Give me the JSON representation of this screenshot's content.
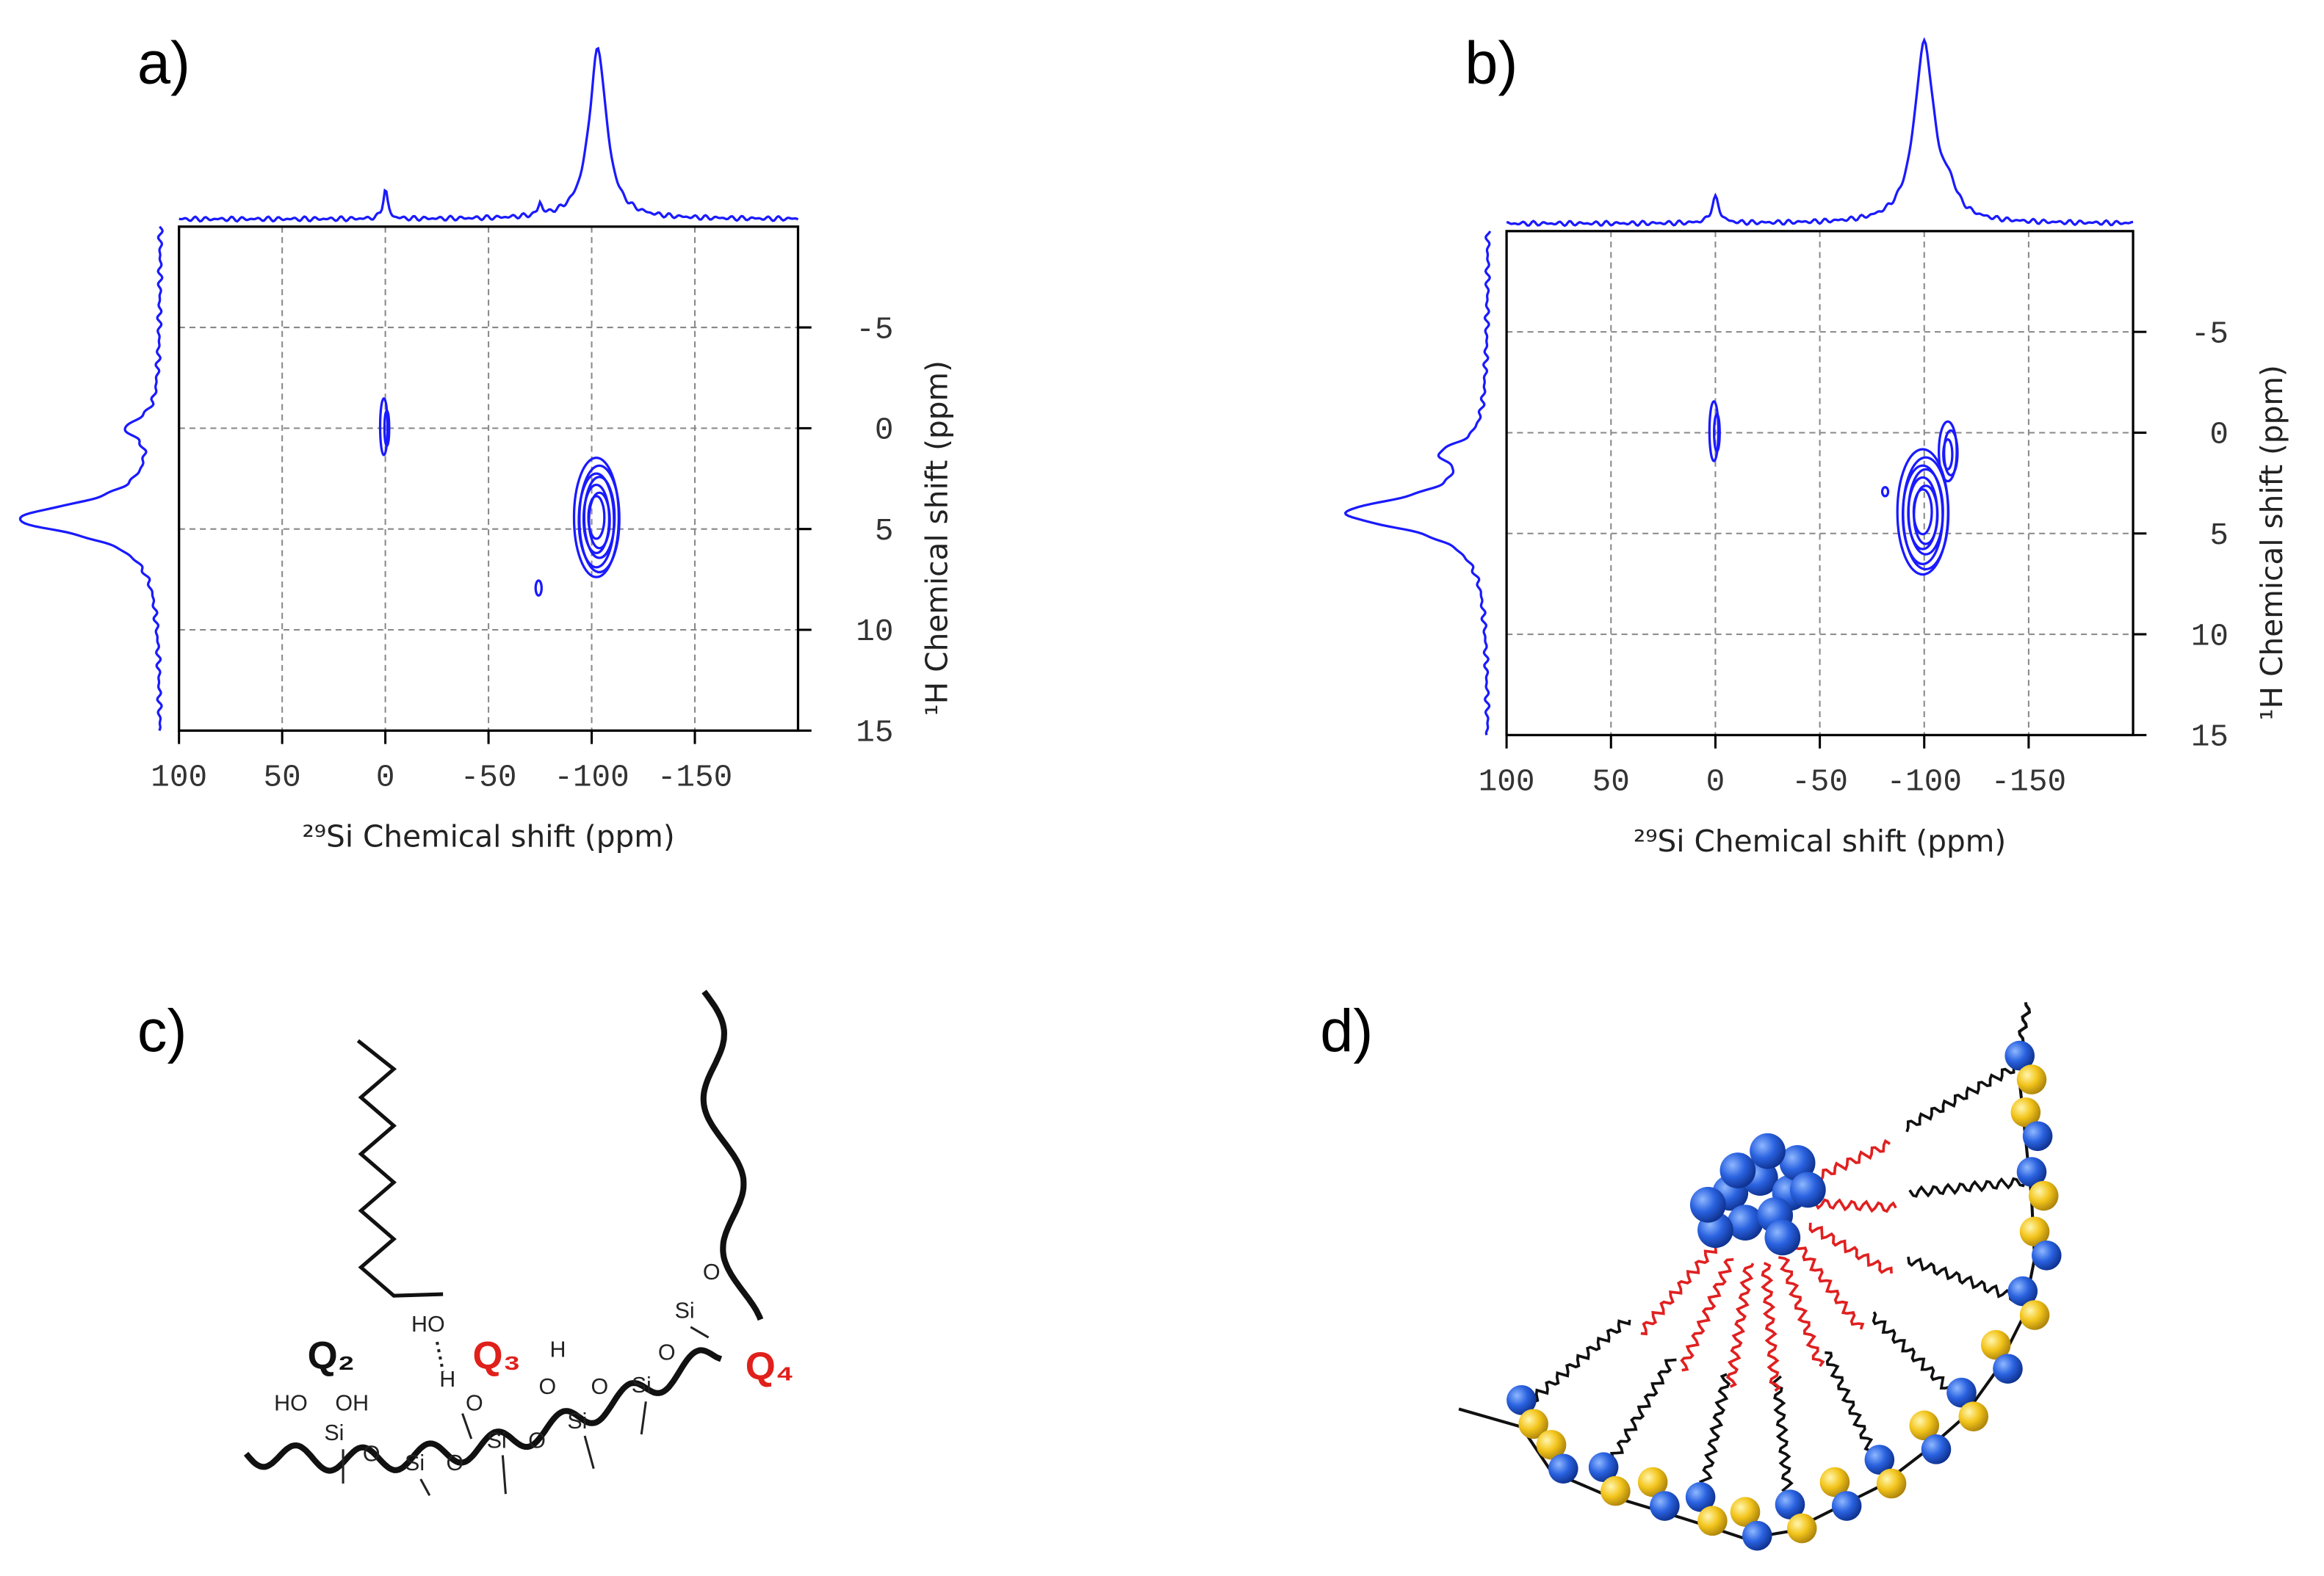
{
  "chart_data": [
    {
      "type": "contour",
      "panel_label": "a)",
      "x_label": "²⁹Si Chemical shift (ppm)",
      "y_label": "¹H Chemical shift (ppm)",
      "xlim": [
        100,
        -200
      ],
      "ylim": [
        -10,
        15
      ],
      "xticks": [
        100,
        50,
        0,
        -50,
        -100,
        -150
      ],
      "yticks": [
        -5,
        0,
        5,
        10,
        15
      ],
      "grid": true,
      "color": "#1a1aff",
      "peaks": [
        {
          "x": 0,
          "y": 0
        },
        {
          "x": -103,
          "y": 4.5
        },
        {
          "x": -75,
          "y": 8
        }
      ]
    },
    {
      "type": "contour",
      "panel_label": "b)",
      "x_label": "²⁹Si Chemical shift (ppm)",
      "y_label": "¹H Chemical shift (ppm)",
      "xlim": [
        100,
        -200
      ],
      "ylim": [
        -10,
        15
      ],
      "xticks": [
        100,
        50,
        0,
        -50,
        -100,
        -150
      ],
      "yticks": [
        -5,
        0,
        5,
        10,
        15
      ],
      "grid": true,
      "color": "#1a1aff",
      "peaks": [
        {
          "x": 0,
          "y": 0
        },
        {
          "x": -100,
          "y": 4
        },
        {
          "x": -112,
          "y": 1
        },
        {
          "x": -82,
          "y": 3
        }
      ]
    }
  ],
  "panel_c": {
    "label": "c)",
    "q_labels": [
      "Q₂",
      "Q₃",
      "Q₄"
    ],
    "q_colors": [
      "#111111",
      "#e0201b",
      "#e0201b"
    ],
    "atoms": [
      "HO",
      "OH",
      "Si",
      "O",
      "Si",
      "O",
      "Si",
      "O",
      "Si",
      "O",
      "Si",
      "O",
      "Si",
      "O",
      "HO",
      "H",
      "O",
      "H",
      "O"
    ]
  },
  "panel_d": {
    "label": "d)"
  }
}
